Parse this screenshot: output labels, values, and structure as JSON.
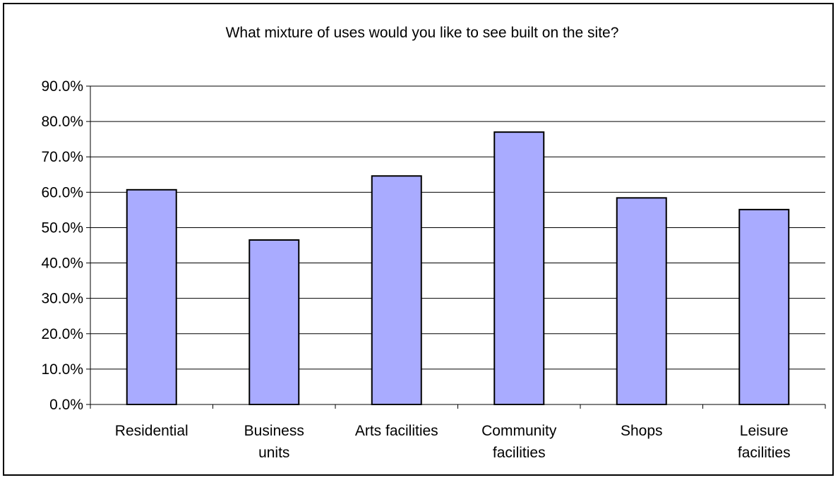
{
  "chart_data": {
    "type": "bar",
    "title": "What mixture of uses would you like to see built on the site?",
    "xlabel": "",
    "ylabel": "",
    "ylim": [
      0,
      90
    ],
    "y_ticks": [
      "0.0%",
      "10.0%",
      "20.0%",
      "30.0%",
      "40.0%",
      "50.0%",
      "60.0%",
      "70.0%",
      "80.0%",
      "90.0%"
    ],
    "categories": [
      [
        "Residential"
      ],
      [
        "Business",
        "units"
      ],
      [
        "Arts facilities"
      ],
      [
        "Community",
        "facilities"
      ],
      [
        "Shops"
      ],
      [
        "Leisure",
        "facilities"
      ]
    ],
    "values": [
      60.7,
      46.5,
      64.6,
      77.0,
      58.4,
      55.1
    ],
    "grid": true,
    "legend": "none",
    "colors": {
      "bar_fill": "#a9abff",
      "bar_stroke": "#000000",
      "grid": "#000000",
      "background": "#ffffff"
    }
  }
}
